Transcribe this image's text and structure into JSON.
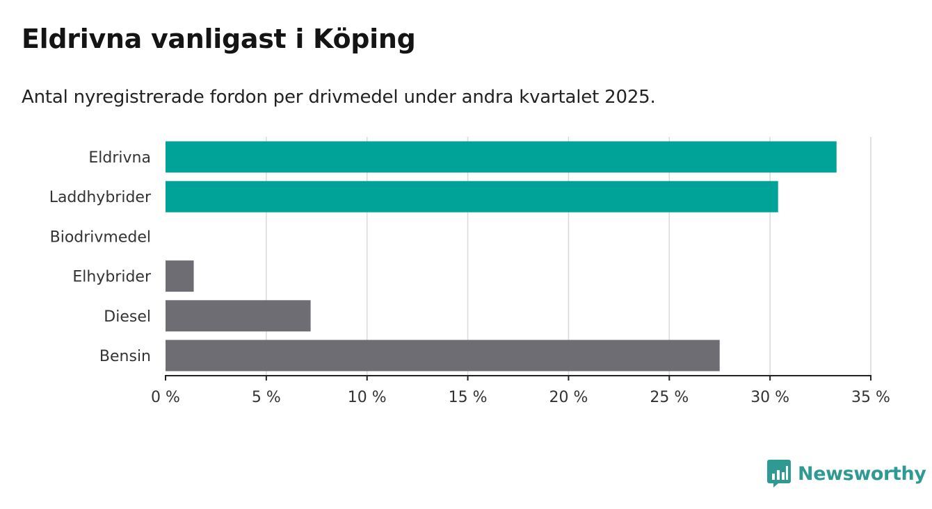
{
  "chart_data": {
    "type": "bar",
    "orientation": "horizontal",
    "title": "Eldrivna vanligast i Köping",
    "subtitle": "Antal nyregistrerade fordon per drivmedel under andra kvartalet 2025.",
    "categories": [
      "Eldrivna",
      "Laddhybrider",
      "Biodrivmedel",
      "Elhybrider",
      "Diesel",
      "Bensin"
    ],
    "values": [
      33.3,
      30.4,
      0,
      1.4,
      7.2,
      27.5
    ],
    "colors": [
      "#00a398",
      "#00a398",
      "#6e6d74",
      "#6e6d74",
      "#6e6d74",
      "#6e6d74"
    ],
    "xlim": [
      0,
      35
    ],
    "xticks": [
      0,
      5,
      10,
      15,
      20,
      25,
      30,
      35
    ],
    "xtick_labels": [
      "0 %",
      "5 %",
      "10 %",
      "15 %",
      "20 %",
      "25 %",
      "30 %",
      "35 %"
    ],
    "xlabel": "",
    "ylabel": "",
    "grid": "vertical"
  },
  "brand": {
    "name": "Newsworthy",
    "color": "#2f9a93",
    "icon": "bar-chart-bubble-icon"
  }
}
